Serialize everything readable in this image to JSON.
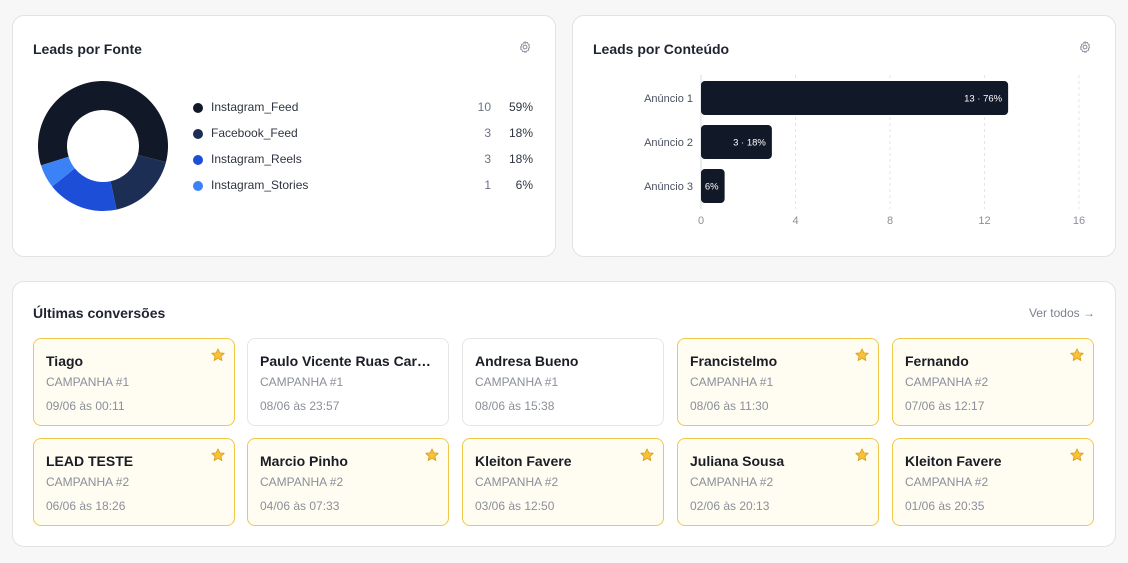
{
  "fonte": {
    "title": "Leads por Fonte",
    "items": [
      {
        "label": "Instagram_Feed",
        "count": "10",
        "pct": "59%",
        "value": 10,
        "color": "#111827"
      },
      {
        "label": "Facebook_Feed",
        "count": "3",
        "pct": "18%",
        "value": 3,
        "color": "#1c2e54"
      },
      {
        "label": "Instagram_Reels",
        "count": "3",
        "pct": "18%",
        "value": 3,
        "color": "#1d4ed8"
      },
      {
        "label": "Instagram_Stories",
        "count": "1",
        "pct": "6%",
        "value": 1,
        "color": "#3b82f6"
      }
    ]
  },
  "conteudo": {
    "title": "Leads por Conteúdo"
  },
  "chart_data": {
    "type": "bar",
    "orientation": "horizontal",
    "categories": [
      "Anúncio 1",
      "Anúncio 2",
      "Anúncio 3"
    ],
    "values": [
      13,
      3,
      1
    ],
    "data_labels": [
      "13 · 76%",
      "3 · 18%",
      "6%"
    ],
    "xlim": [
      0,
      16
    ],
    "xticks": [
      "0",
      "4",
      "8",
      "12",
      "16"
    ],
    "bar_color": "#111827",
    "grid": true
  },
  "conversoes": {
    "title": "Últimas conversões",
    "ver_todos": "Ver todos →",
    "items": [
      {
        "name": "Tiago",
        "campaign": "CAMPANHA #1",
        "date": "09/06 às 00:11",
        "starred": true
      },
      {
        "name": "Paulo Vicente Ruas Cardoso",
        "campaign": "CAMPANHA #1",
        "date": "08/06 às 23:57",
        "starred": false
      },
      {
        "name": "Andresa Bueno",
        "campaign": "CAMPANHA #1",
        "date": "08/06 às 15:38",
        "starred": false
      },
      {
        "name": "Francistelmo",
        "campaign": "CAMPANHA #1",
        "date": "08/06 às 11:30",
        "starred": true
      },
      {
        "name": "Fernando",
        "campaign": "CAMPANHA #2",
        "date": "07/06 às 12:17",
        "starred": true
      },
      {
        "name": "LEAD TESTE",
        "campaign": "CAMPANHA #2",
        "date": "06/06 às 18:26",
        "starred": true
      },
      {
        "name": "Marcio Pinho",
        "campaign": "CAMPANHA #2",
        "date": "04/06 às 07:33",
        "starred": true
      },
      {
        "name": "Kleiton Favere",
        "campaign": "CAMPANHA #2",
        "date": "03/06 às 12:50",
        "starred": true
      },
      {
        "name": "Juliana Sousa",
        "campaign": "CAMPANHA #2",
        "date": "02/06 às 20:13",
        "starred": true
      },
      {
        "name": "Kleiton Favere",
        "campaign": "CAMPANHA #2",
        "date": "01/06 às 20:35",
        "starred": true
      }
    ]
  },
  "icons": {
    "settings": "gear-icon",
    "favorite": "star-icon"
  }
}
